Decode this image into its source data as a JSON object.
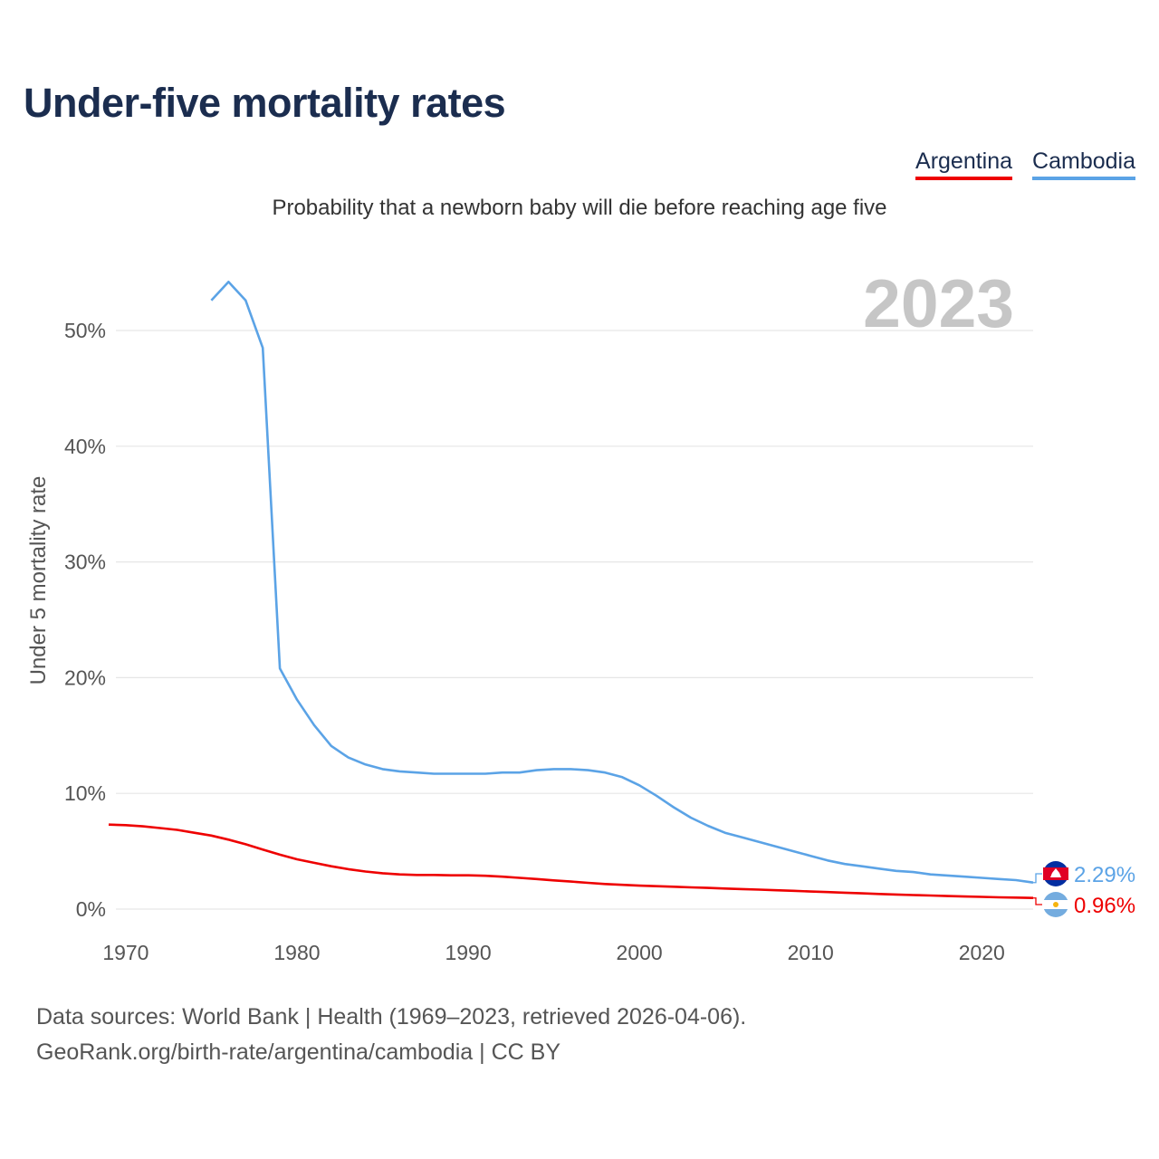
{
  "title": "Under-five mortality rates",
  "subtitle": "Probability that a newborn baby will die before reaching age five",
  "legend": [
    {
      "label": "Argentina",
      "color": "#ee0000"
    },
    {
      "label": "Cambodia",
      "color": "#5ba3e6"
    }
  ],
  "footer": {
    "line1": "Data sources: World Bank | Health (1969–2023, retrieved 2026-04-06).",
    "line2": "GeoRank.org/birth-rate/argentina/cambodia | CC BY"
  },
  "chart_data": {
    "type": "line",
    "year_label": "2023",
    "ylabel": "Under 5 mortality rate",
    "xlim": [
      1969,
      2023
    ],
    "ylim": [
      0,
      55
    ],
    "x_ticks": [
      1970,
      1980,
      1990,
      2000,
      2010,
      2020
    ],
    "y_ticks": [
      0,
      10,
      20,
      30,
      40,
      50
    ],
    "y_tick_labels": [
      "0%",
      "10%",
      "20%",
      "30%",
      "40%",
      "50%"
    ],
    "series": [
      {
        "name": "Cambodia",
        "color": "#5ba3e6",
        "end_label": "2.29%",
        "x": [
          1975,
          1976,
          1977,
          1978,
          1979,
          1980,
          1981,
          1982,
          1983,
          1984,
          1985,
          1986,
          1987,
          1988,
          1989,
          1990,
          1991,
          1992,
          1993,
          1994,
          1995,
          1996,
          1997,
          1998,
          1999,
          2000,
          2001,
          2002,
          2003,
          2004,
          2005,
          2006,
          2007,
          2008,
          2009,
          2010,
          2011,
          2012,
          2013,
          2014,
          2015,
          2016,
          2017,
          2018,
          2019,
          2020,
          2021,
          2022,
          2023
        ],
        "y": [
          52.6,
          54.2,
          52.6,
          48.5,
          20.8,
          18.1,
          15.9,
          14.1,
          13.1,
          12.5,
          12.1,
          11.9,
          11.8,
          11.7,
          11.7,
          11.7,
          11.7,
          11.8,
          11.8,
          12.0,
          12.1,
          12.1,
          12.0,
          11.8,
          11.4,
          10.7,
          9.8,
          8.8,
          7.9,
          7.2,
          6.6,
          6.2,
          5.8,
          5.4,
          5.0,
          4.6,
          4.2,
          3.9,
          3.7,
          3.5,
          3.3,
          3.2,
          3.0,
          2.9,
          2.8,
          2.7,
          2.6,
          2.5,
          2.29
        ]
      },
      {
        "name": "Argentina",
        "color": "#ee0000",
        "end_label": "0.96%",
        "x": [
          1969,
          1970,
          1971,
          1972,
          1973,
          1974,
          1975,
          1976,
          1977,
          1978,
          1979,
          1980,
          1981,
          1982,
          1983,
          1984,
          1985,
          1986,
          1987,
          1988,
          1989,
          1990,
          1991,
          1992,
          1993,
          1994,
          1995,
          1996,
          1997,
          1998,
          1999,
          2000,
          2001,
          2002,
          2003,
          2004,
          2005,
          2006,
          2007,
          2008,
          2009,
          2010,
          2011,
          2012,
          2013,
          2014,
          2015,
          2016,
          2017,
          2018,
          2019,
          2020,
          2021,
          2022,
          2023
        ],
        "y": [
          7.3,
          7.25,
          7.15,
          7.0,
          6.85,
          6.6,
          6.35,
          6.0,
          5.6,
          5.15,
          4.7,
          4.3,
          4.0,
          3.7,
          3.45,
          3.25,
          3.1,
          3.0,
          2.95,
          2.95,
          2.92,
          2.92,
          2.88,
          2.8,
          2.7,
          2.6,
          2.48,
          2.38,
          2.27,
          2.17,
          2.1,
          2.03,
          1.98,
          1.93,
          1.88,
          1.83,
          1.78,
          1.73,
          1.68,
          1.63,
          1.58,
          1.52,
          1.47,
          1.42,
          1.36,
          1.31,
          1.26,
          1.21,
          1.17,
          1.13,
          1.09,
          1.06,
          1.02,
          0.99,
          0.96
        ]
      }
    ]
  }
}
